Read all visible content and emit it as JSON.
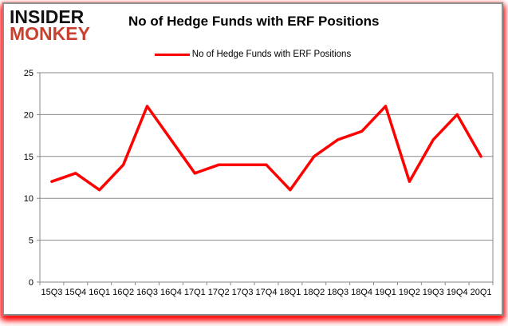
{
  "logo": {
    "line1": "INSIDER",
    "line2": "MONKEY"
  },
  "header": {
    "title": "No of Hedge Funds with ERF Positions"
  },
  "legend": {
    "label": "No of Hedge Funds with ERF Positions"
  },
  "chart_data": {
    "type": "line",
    "title": "No of Hedge Funds with ERF Positions",
    "categories": [
      "15Q3",
      "15Q4",
      "16Q1",
      "16Q2",
      "16Q3",
      "16Q4",
      "17Q1",
      "17Q2",
      "17Q3",
      "17Q4",
      "18Q1",
      "18Q2",
      "18Q3",
      "18Q4",
      "19Q1",
      "19Q2",
      "19Q3",
      "19Q4",
      "20Q1"
    ],
    "series": [
      {
        "name": "No of Hedge Funds with ERF Positions",
        "values": [
          12,
          13,
          11,
          14,
          21,
          17,
          13,
          14,
          14,
          14,
          11,
          15,
          17,
          18,
          21,
          12,
          17,
          20,
          15
        ]
      }
    ],
    "xlabel": "",
    "ylabel": "",
    "ylim": [
      0,
      25
    ],
    "ytick_step": 5,
    "grid": true,
    "legend_position": "top"
  },
  "colors": {
    "line_red": "#ff0000",
    "logo_red": "#c8402f",
    "grid_gray": "#8a8a8a",
    "axis_gray": "#8a8a8a",
    "border_gray": "#8f8f8f",
    "glow_red": "#ff0000"
  }
}
